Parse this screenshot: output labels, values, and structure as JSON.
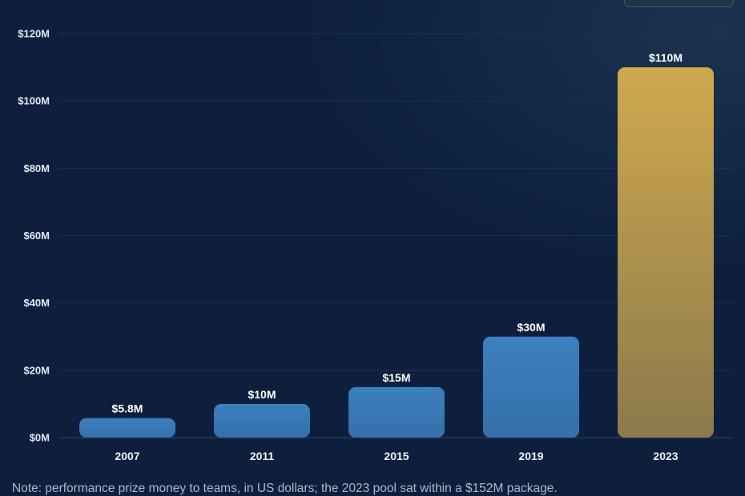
{
  "chart_data": {
    "type": "bar",
    "categories": [
      "2007",
      "2011",
      "2015",
      "2019",
      "2023"
    ],
    "values": [
      5.8,
      10,
      15,
      30,
      110
    ],
    "data_labels": [
      "$5.8M",
      "$10M",
      "$15M",
      "$30M",
      "$110M"
    ],
    "y_ticks": [
      0,
      20,
      40,
      60,
      80,
      100,
      120
    ],
    "y_tick_labels": [
      "$0M",
      "$20M",
      "$40M",
      "$60M",
      "$80M",
      "$100M",
      "$120M"
    ],
    "ylim": [
      0,
      120
    ],
    "unit": "$M",
    "grid": true,
    "highlight_category": "2023",
    "colors": {
      "bar": "#3a7ab8",
      "highlight_top": "#cfa94e",
      "highlight_bottom": "#8c7a4c",
      "grid": "#1c3252",
      "background": "#0d1f3c"
    }
  },
  "note": "Note: performance prize money to teams, in US dollars; the 2023 pool sat within a $152M package."
}
